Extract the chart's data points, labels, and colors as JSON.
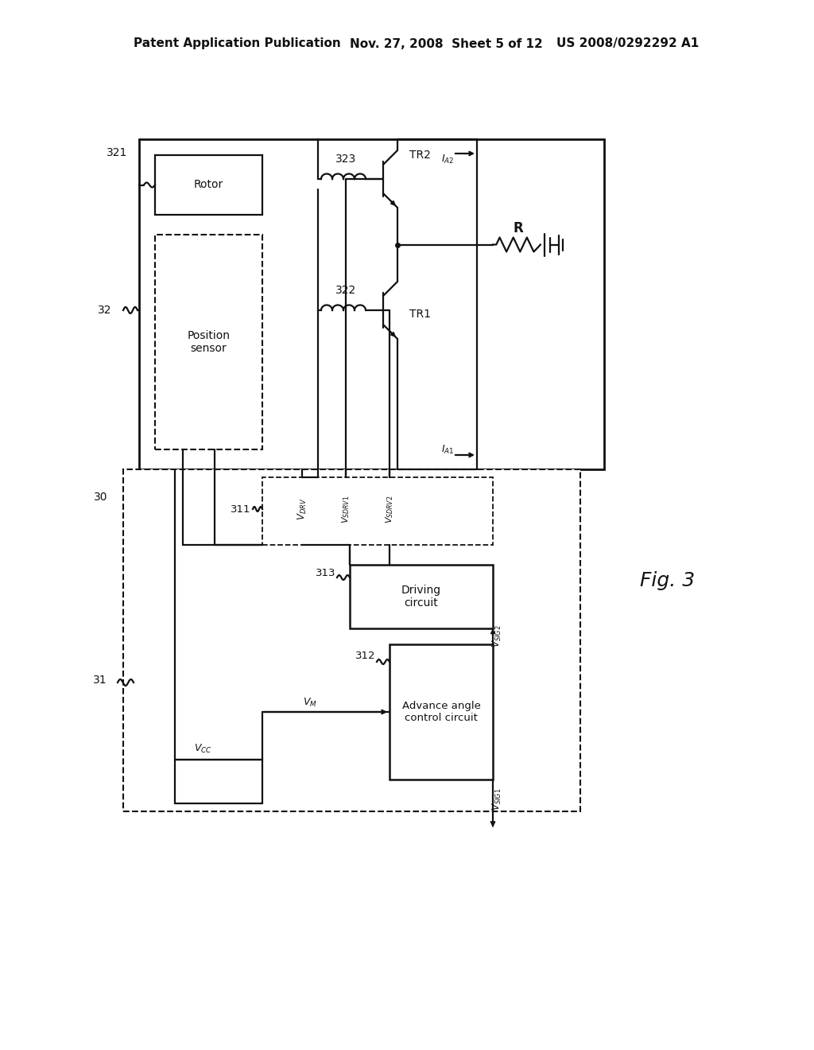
{
  "bg_color": "#ffffff",
  "header_left": "Patent Application Publication",
  "header_mid": "Nov. 27, 2008  Sheet 5 of 12",
  "header_right": "US 2008/0292292 A1",
  "fig_label": "Fig. 3",
  "line_color": "#111111"
}
